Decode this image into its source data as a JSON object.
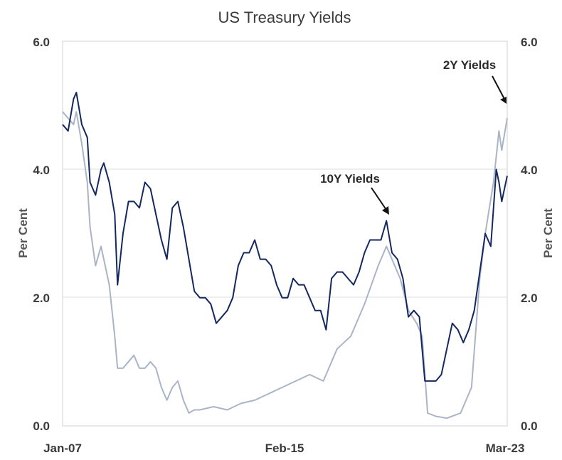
{
  "chart_data": {
    "type": "line",
    "title": "US Treasury Yields",
    "ylabel_left": "Per Cent",
    "ylabel_right": "Per Cent",
    "ylim": [
      0,
      6
    ],
    "yticks": [
      "0.0",
      "2.0",
      "4.0",
      "6.0"
    ],
    "xticks": [
      "Jan-07",
      "Feb-15",
      "Mar-23"
    ],
    "colors": {
      "10y": "#14285f",
      "2y": "#a9b4c8"
    },
    "annotations": [
      {
        "text": "10Y Yields",
        "series": "10y"
      },
      {
        "text": "2Y Yields",
        "series": "2y"
      }
    ],
    "series": [
      {
        "id": "10y",
        "x": [
          2007.0,
          2007.2,
          2007.4,
          2007.5,
          2007.7,
          2007.9,
          2008.0,
          2008.2,
          2008.4,
          2008.5,
          2008.7,
          2008.9,
          2009.0,
          2009.2,
          2009.4,
          2009.6,
          2009.8,
          2010.0,
          2010.2,
          2010.4,
          2010.6,
          2010.8,
          2011.0,
          2011.2,
          2011.4,
          2011.6,
          2011.8,
          2012.0,
          2012.2,
          2012.4,
          2012.6,
          2012.8,
          2013.0,
          2013.2,
          2013.4,
          2013.6,
          2013.8,
          2014.0,
          2014.2,
          2014.4,
          2014.6,
          2014.8,
          2015.0,
          2015.2,
          2015.4,
          2015.6,
          2015.8,
          2016.0,
          2016.2,
          2016.4,
          2016.6,
          2016.8,
          2017.0,
          2017.2,
          2017.4,
          2017.6,
          2017.8,
          2018.0,
          2018.2,
          2018.4,
          2018.6,
          2018.8,
          2019.0,
          2019.2,
          2019.4,
          2019.6,
          2019.8,
          2020.0,
          2020.2,
          2020.4,
          2020.6,
          2020.8,
          2021.0,
          2021.2,
          2021.4,
          2021.6,
          2021.8,
          2022.0,
          2022.2,
          2022.4,
          2022.6,
          2022.8,
          2022.9,
          2023.0,
          2023.2
        ],
        "y": [
          4.7,
          4.6,
          5.1,
          5.2,
          4.7,
          4.5,
          3.8,
          3.6,
          4.0,
          4.1,
          3.8,
          3.3,
          2.2,
          3.0,
          3.5,
          3.5,
          3.4,
          3.8,
          3.7,
          3.3,
          2.9,
          2.6,
          3.4,
          3.5,
          3.1,
          2.6,
          2.1,
          2.0,
          2.0,
          1.9,
          1.6,
          1.7,
          1.8,
          2.0,
          2.5,
          2.7,
          2.7,
          2.9,
          2.6,
          2.6,
          2.5,
          2.2,
          2.0,
          2.0,
          2.3,
          2.2,
          2.2,
          2.0,
          1.8,
          1.8,
          1.5,
          2.3,
          2.4,
          2.4,
          2.3,
          2.2,
          2.4,
          2.7,
          2.9,
          2.9,
          2.9,
          3.2,
          2.7,
          2.6,
          2.3,
          1.7,
          1.8,
          1.7,
          0.7,
          0.7,
          0.7,
          0.8,
          1.2,
          1.6,
          1.5,
          1.3,
          1.5,
          1.8,
          2.4,
          3.0,
          2.8,
          4.0,
          3.8,
          3.5,
          3.9
        ]
      },
      {
        "id": "2y",
        "x": [
          2007.0,
          2007.2,
          2007.4,
          2007.5,
          2007.7,
          2007.9,
          2008.0,
          2008.2,
          2008.4,
          2008.5,
          2008.7,
          2008.9,
          2009.0,
          2009.2,
          2009.4,
          2009.6,
          2009.8,
          2010.0,
          2010.2,
          2010.4,
          2010.6,
          2010.8,
          2011.0,
          2011.2,
          2011.4,
          2011.6,
          2011.8,
          2012.0,
          2012.5,
          2013.0,
          2013.5,
          2014.0,
          2014.5,
          2015.0,
          2015.5,
          2016.0,
          2016.5,
          2017.0,
          2017.5,
          2018.0,
          2018.5,
          2018.8,
          2019.0,
          2019.3,
          2019.6,
          2019.9,
          2020.1,
          2020.3,
          2020.6,
          2021.0,
          2021.5,
          2021.9,
          2022.2,
          2022.4,
          2022.7,
          2022.9,
          2023.0,
          2023.2
        ],
        "y": [
          4.9,
          4.8,
          4.7,
          4.9,
          4.4,
          3.8,
          3.1,
          2.5,
          2.8,
          2.6,
          2.2,
          1.4,
          0.9,
          0.9,
          1.0,
          1.1,
          0.9,
          0.9,
          1.0,
          0.9,
          0.6,
          0.4,
          0.6,
          0.7,
          0.4,
          0.2,
          0.25,
          0.25,
          0.3,
          0.25,
          0.35,
          0.4,
          0.5,
          0.6,
          0.7,
          0.8,
          0.7,
          1.2,
          1.4,
          1.9,
          2.5,
          2.8,
          2.6,
          2.3,
          1.8,
          1.6,
          1.4,
          0.2,
          0.15,
          0.12,
          0.2,
          0.6,
          2.3,
          3.0,
          3.8,
          4.6,
          4.3,
          4.8
        ]
      }
    ]
  }
}
